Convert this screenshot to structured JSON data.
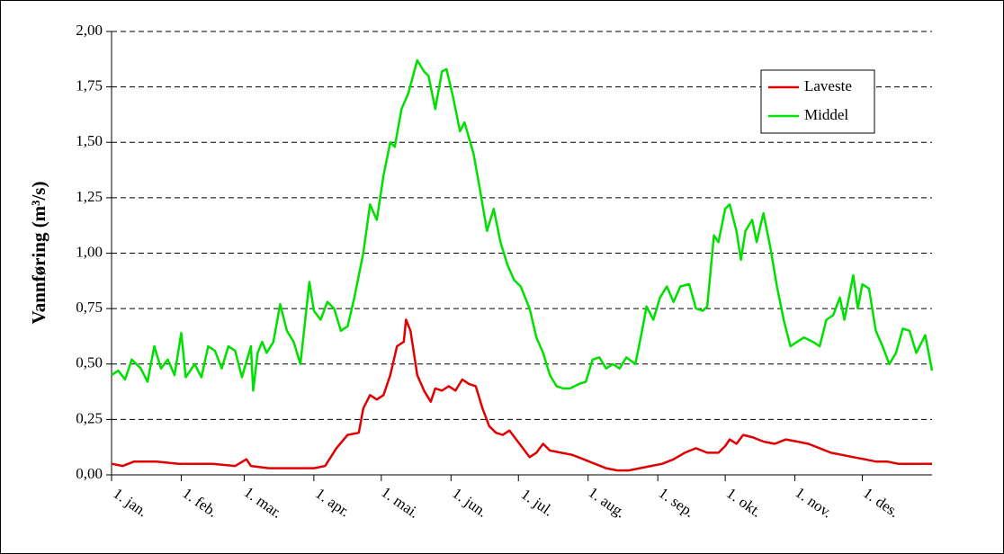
{
  "chart_data": {
    "type": "line",
    "y_label": "Vannføring (m³/s)",
    "xlim": [
      0,
      365
    ],
    "xticks": [
      {
        "value": 0,
        "label": "1. jan."
      },
      {
        "value": 31,
        "label": "1. feb."
      },
      {
        "value": 59,
        "label": "1. mar."
      },
      {
        "value": 90,
        "label": "1. apr."
      },
      {
        "value": 120,
        "label": "1. mai."
      },
      {
        "value": 151,
        "label": "1. jun."
      },
      {
        "value": 181,
        "label": "1. jul."
      },
      {
        "value": 212,
        "label": "1. aug."
      },
      {
        "value": 243,
        "label": "1. sep."
      },
      {
        "value": 273,
        "label": "1. okt."
      },
      {
        "value": 304,
        "label": "1. nov."
      },
      {
        "value": 334,
        "label": "1. des."
      }
    ],
    "ylim": [
      0,
      2
    ],
    "yticks": [
      {
        "value": 0,
        "label": "0,00"
      },
      {
        "value": 0.25,
        "label": "0,25"
      },
      {
        "value": 0.5,
        "label": "0,50"
      },
      {
        "value": 0.75,
        "label": "0,75"
      },
      {
        "value": 1,
        "label": "1,00"
      },
      {
        "value": 1.25,
        "label": "1,25"
      },
      {
        "value": 1.5,
        "label": "1,50"
      },
      {
        "value": 1.75,
        "label": "1,75"
      },
      {
        "value": 2,
        "label": "2,00"
      }
    ],
    "grid": true,
    "legend": "upper right",
    "series": [
      {
        "name": "Laveste",
        "color": "#e00000",
        "x": [
          0,
          5,
          10,
          20,
          30,
          45,
          55,
          60,
          62,
          70,
          80,
          90,
          95,
          100,
          105,
          110,
          112,
          115,
          118,
          121,
          124,
          127,
          130,
          131,
          133,
          136,
          139,
          142,
          144,
          147,
          150,
          153,
          156,
          159,
          162,
          165,
          168,
          171,
          174,
          177,
          180,
          183,
          186,
          189,
          192,
          195,
          200,
          205,
          210,
          215,
          220,
          225,
          230,
          235,
          240,
          245,
          250,
          255,
          260,
          265,
          270,
          273,
          275,
          278,
          281,
          285,
          290,
          295,
          300,
          305,
          310,
          315,
          320,
          325,
          330,
          335,
          340,
          345,
          350,
          355,
          360,
          365
        ],
        "values": [
          0.05,
          0.04,
          0.06,
          0.06,
          0.05,
          0.05,
          0.04,
          0.07,
          0.04,
          0.03,
          0.03,
          0.03,
          0.04,
          0.12,
          0.18,
          0.19,
          0.3,
          0.36,
          0.34,
          0.36,
          0.45,
          0.58,
          0.6,
          0.7,
          0.65,
          0.45,
          0.38,
          0.33,
          0.39,
          0.38,
          0.4,
          0.38,
          0.43,
          0.41,
          0.4,
          0.3,
          0.22,
          0.19,
          0.18,
          0.2,
          0.16,
          0.12,
          0.08,
          0.1,
          0.14,
          0.11,
          0.1,
          0.09,
          0.07,
          0.05,
          0.03,
          0.02,
          0.02,
          0.03,
          0.04,
          0.05,
          0.07,
          0.1,
          0.12,
          0.1,
          0.1,
          0.13,
          0.16,
          0.14,
          0.18,
          0.17,
          0.15,
          0.14,
          0.16,
          0.15,
          0.14,
          0.12,
          0.1,
          0.09,
          0.08,
          0.07,
          0.06,
          0.06,
          0.05,
          0.05,
          0.05,
          0.05
        ]
      },
      {
        "name": "Middel",
        "color": "#00e000",
        "x": [
          0,
          3,
          6,
          9,
          13,
          16,
          19,
          22,
          25,
          28,
          31,
          33,
          37,
          40,
          43,
          46,
          49,
          52,
          55,
          58,
          62,
          63,
          65,
          67,
          69,
          72,
          75,
          78,
          81,
          84,
          88,
          90,
          93,
          96,
          99,
          102,
          105,
          108,
          112,
          115,
          118,
          121,
          124,
          126,
          129,
          132,
          136,
          139,
          141,
          144,
          147,
          149,
          152,
          155,
          157,
          161,
          164,
          167,
          170,
          173,
          176,
          179,
          182,
          186,
          189,
          192,
          195,
          198,
          201,
          204,
          208,
          211,
          214,
          217,
          220,
          223,
          226,
          229,
          233,
          236,
          238,
          241,
          244,
          247,
          250,
          253,
          257,
          260,
          263,
          265,
          268,
          270,
          273,
          275,
          278,
          280,
          282,
          285,
          287,
          290,
          293,
          296,
          299,
          302,
          305,
          308,
          312,
          315,
          318,
          321,
          324,
          326,
          330,
          332,
          334,
          337,
          340,
          343,
          346,
          349,
          352,
          355,
          358,
          362,
          365
        ],
        "values": [
          0.45,
          0.47,
          0.43,
          0.52,
          0.48,
          0.42,
          0.58,
          0.48,
          0.52,
          0.45,
          0.64,
          0.44,
          0.5,
          0.44,
          0.58,
          0.56,
          0.48,
          0.58,
          0.56,
          0.44,
          0.58,
          0.38,
          0.55,
          0.6,
          0.55,
          0.6,
          0.77,
          0.65,
          0.6,
          0.5,
          0.87,
          0.74,
          0.7,
          0.78,
          0.75,
          0.65,
          0.67,
          0.8,
          1.0,
          1.22,
          1.15,
          1.35,
          1.5,
          1.48,
          1.65,
          1.72,
          1.87,
          1.82,
          1.8,
          1.65,
          1.82,
          1.83,
          1.7,
          1.55,
          1.59,
          1.45,
          1.28,
          1.1,
          1.2,
          1.05,
          0.95,
          0.88,
          0.85,
          0.75,
          0.62,
          0.55,
          0.45,
          0.4,
          0.39,
          0.39,
          0.41,
          0.42,
          0.52,
          0.53,
          0.48,
          0.5,
          0.48,
          0.53,
          0.5,
          0.65,
          0.76,
          0.7,
          0.8,
          0.85,
          0.78,
          0.85,
          0.86,
          0.75,
          0.74,
          0.76,
          1.08,
          1.05,
          1.2,
          1.22,
          1.1,
          0.97,
          1.1,
          1.15,
          1.05,
          1.18,
          1.03,
          0.85,
          0.7,
          0.58,
          0.6,
          0.62,
          0.6,
          0.58,
          0.7,
          0.72,
          0.8,
          0.7,
          0.9,
          0.75,
          0.86,
          0.84,
          0.65,
          0.58,
          0.5,
          0.55,
          0.66,
          0.65,
          0.55,
          0.63,
          0.47
        ]
      }
    ]
  }
}
